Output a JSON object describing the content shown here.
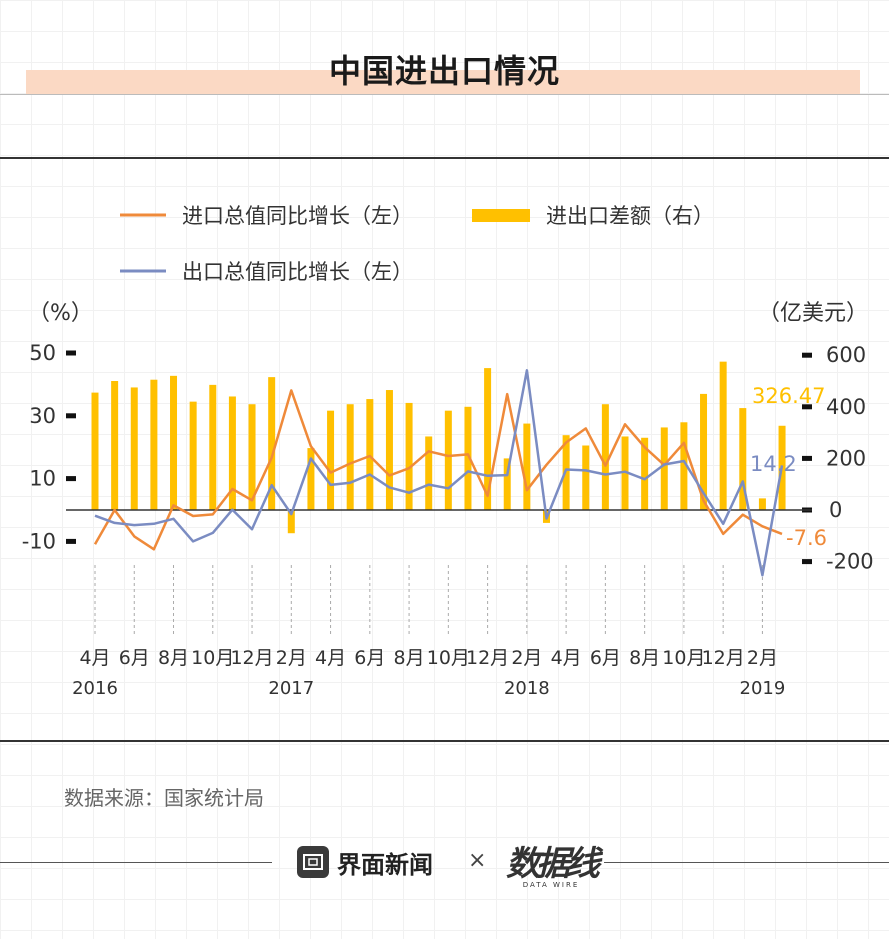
{
  "header": {
    "title": "中国进出口情况"
  },
  "legend": {
    "import": "进口总值同比增长（左）",
    "balance": "进出口差额（右）",
    "export": "出口总值同比增长（左）"
  },
  "colors": {
    "import": "#ef8a3a",
    "export": "#7b8cc2",
    "balance": "#ffc000",
    "annotation_balance": "#ffc000"
  },
  "chart_data": {
    "type": "bar+line",
    "left_axis": {
      "label": "（%）",
      "ticks": [
        50,
        30,
        10,
        -10
      ],
      "range": [
        -20,
        55
      ]
    },
    "right_axis": {
      "label": "（亿美元）",
      "ticks": [
        600,
        400,
        200,
        0,
        -200
      ],
      "range": [
        -320,
        640
      ]
    },
    "x_tick_labels": [
      {
        "i": 0,
        "m": "4月",
        "y": "2016"
      },
      {
        "i": 2,
        "m": "6月",
        "y": ""
      },
      {
        "i": 4,
        "m": "8月",
        "y": ""
      },
      {
        "i": 6,
        "m": "10月",
        "y": ""
      },
      {
        "i": 8,
        "m": "12月",
        "y": ""
      },
      {
        "i": 10,
        "m": "2月",
        "y": "2017"
      },
      {
        "i": 12,
        "m": "4月",
        "y": ""
      },
      {
        "i": 14,
        "m": "6月",
        "y": ""
      },
      {
        "i": 16,
        "m": "8月",
        "y": ""
      },
      {
        "i": 18,
        "m": "10月",
        "y": ""
      },
      {
        "i": 20,
        "m": "12月",
        "y": ""
      },
      {
        "i": 22,
        "m": "2月",
        "y": "2018"
      },
      {
        "i": 24,
        "m": "4月",
        "y": ""
      },
      {
        "i": 26,
        "m": "6月",
        "y": ""
      },
      {
        "i": 28,
        "m": "8月",
        "y": ""
      },
      {
        "i": 30,
        "m": "10月",
        "y": ""
      },
      {
        "i": 32,
        "m": "12月",
        "y": ""
      },
      {
        "i": 34,
        "m": "2月",
        "y": "2019"
      }
    ],
    "months": [
      "2016-04",
      "2016-05",
      "2016-06",
      "2016-07",
      "2016-08",
      "2016-09",
      "2016-10",
      "2016-11",
      "2016-12",
      "2017-01",
      "2017-02",
      "2017-03",
      "2017-04",
      "2017-05",
      "2017-06",
      "2017-07",
      "2017-08",
      "2017-09",
      "2017-10",
      "2017-11",
      "2017-12",
      "2018-01",
      "2018-02",
      "2018-03",
      "2018-04",
      "2018-05",
      "2018-06",
      "2018-07",
      "2018-08",
      "2018-09",
      "2018-10",
      "2018-11",
      "2018-12",
      "2019-01",
      "2019-02",
      "2019-03"
    ],
    "series": [
      {
        "name": "进出口差额（右）",
        "type": "bar",
        "axis": "right",
        "values": [
          455,
          500,
          475,
          505,
          520,
          420,
          485,
          440,
          410,
          515,
          -90,
          240,
          385,
          410,
          430,
          465,
          415,
          285,
          385,
          400,
          550,
          200,
          335,
          -50,
          290,
          250,
          410,
          285,
          280,
          320,
          340,
          450,
          575,
          395,
          45,
          326.47
        ]
      },
      {
        "name": "进口总值同比增长（左）",
        "type": "line",
        "axis": "left",
        "values": [
          -10.9,
          0.0,
          -8.4,
          -12.5,
          1.5,
          -1.9,
          -1.4,
          6.7,
          3.1,
          16.7,
          38.1,
          20.3,
          11.9,
          14.8,
          17.2,
          11.0,
          13.3,
          18.7,
          17.2,
          17.7,
          4.5,
          36.9,
          6.3,
          14.4,
          21.5,
          26.0,
          14.1,
          27.3,
          20.0,
          14.3,
          21.4,
          3.0,
          -7.6,
          -1.5,
          -5.2,
          -7.6
        ]
      },
      {
        "name": "出口总值同比增长（左）",
        "type": "line",
        "axis": "left",
        "values": [
          -1.8,
          -4.1,
          -4.8,
          -4.4,
          -2.8,
          -10.0,
          -7.3,
          0.1,
          -6.1,
          7.9,
          -1.3,
          16.4,
          8.0,
          8.7,
          11.3,
          7.2,
          5.5,
          8.1,
          6.9,
          12.3,
          10.9,
          11.1,
          44.5,
          -2.7,
          12.9,
          12.6,
          11.3,
          12.2,
          9.8,
          14.5,
          15.6,
          5.4,
          -4.4,
          9.1,
          -20.8,
          14.2
        ]
      }
    ],
    "annotations": {
      "balance_last": "326.47",
      "export_last": "14.2",
      "import_last": "-7.6"
    }
  },
  "source": "数据来源：国家统计局",
  "footer": {
    "brand": "界面新闻",
    "times": "×",
    "partner": "数据线",
    "partner_sub": "DATA WIRE"
  }
}
